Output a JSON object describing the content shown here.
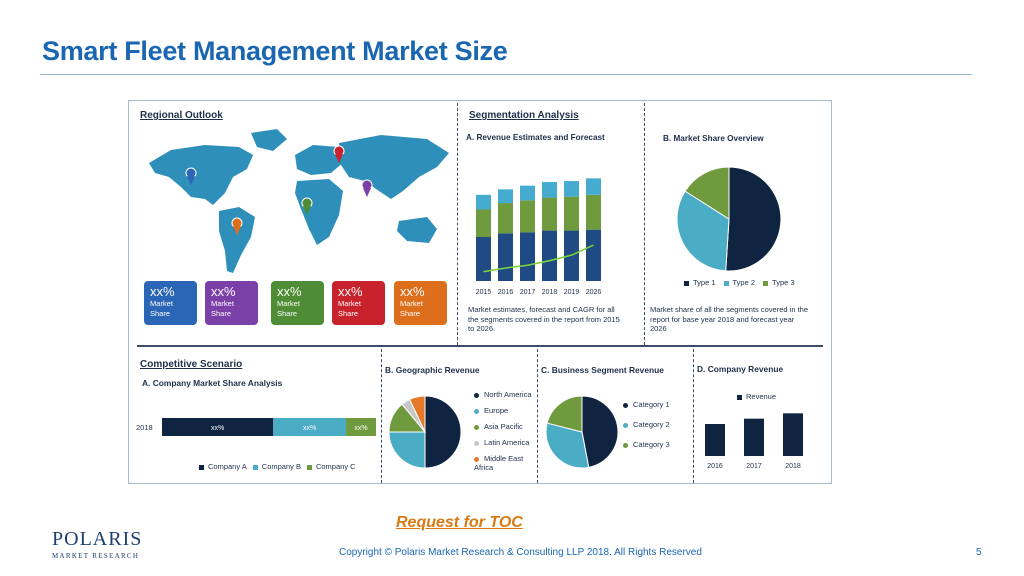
{
  "page": {
    "title": "Smart Fleet Management Market Size",
    "toc_link": "Request for TOC",
    "copyright": "Copyright © Polaris Market Research & Consulting LLP 2018. All Rights Reserved",
    "page_number": "5",
    "logo_main": "POLARIS",
    "logo_sub": "MARKET RESEARCH"
  },
  "infographic": {
    "regional": {
      "heading": "Regional Outlook",
      "tiles": [
        {
          "pct": "xx%",
          "line1": "Market",
          "line2": "Share",
          "color": "#2b66b6"
        },
        {
          "pct": "xx%",
          "line1": "Market",
          "line2": "Share",
          "color": "#7b3fa8"
        },
        {
          "pct": "xx%",
          "line1": "Market",
          "line2": "Share",
          "color": "#4e8c35"
        },
        {
          "pct": "xx%",
          "line1": "Market",
          "line2": "Share",
          "color": "#c8232c"
        },
        {
          "pct": "xx%",
          "line1": "Market",
          "line2": "Share",
          "color": "#dd6e1c"
        }
      ]
    },
    "segmentation": {
      "heading": "Segmentation Analysis",
      "a_title": "A. Revenue Estimates and Forecast",
      "a_note": [
        "Market estimates, forecast and CAGR for all",
        "the segments covered in the report from 2015",
        "to 2026."
      ],
      "b_title": "B. Market Share Overview",
      "b_note": [
        "Market share of all the segments covered in the",
        "report for base year 2018 and forecast year",
        "2026"
      ]
    },
    "competitive": {
      "heading": "Competitive Scenario",
      "a_title": "A. Company Market Share Analysis",
      "b_title": "B. Geographic Revenue",
      "c_title": "C. Business Segment Revenue",
      "d_title": "D. Company Revenue"
    }
  },
  "chart_data": [
    {
      "type": "bar",
      "title": "A. Revenue Estimates and Forecast",
      "stacked": true,
      "categories": [
        "2015",
        "2016",
        "2017",
        "2018",
        "2019",
        "2026"
      ],
      "series": [
        {
          "values": [
            48,
            52,
            53,
            55,
            55,
            56
          ],
          "color": "#1f4a84"
        },
        {
          "values": [
            30,
            33,
            35,
            36,
            37,
            38
          ],
          "color": "#6f9a3d"
        },
        {
          "values": [
            16,
            15,
            16,
            17,
            17,
            18
          ],
          "color": "#45acd0"
        }
      ],
      "trend_line": [
        8,
        12,
        15,
        20,
        26,
        37
      ],
      "ylim": [
        0,
        120
      ]
    },
    {
      "type": "pie",
      "title": "B. Market Share Overview",
      "labels": [
        "Type 1",
        "Type 2",
        "Type 3"
      ],
      "values": [
        51,
        33,
        16
      ],
      "colors": [
        "#0f2440",
        "#4bacc6",
        "#6f9a3d"
      ],
      "legend": "bottom"
    },
    {
      "type": "bar",
      "title": "A. Company Market Share Analysis",
      "orientation": "horizontal",
      "stacked": true,
      "categories": [
        "2018"
      ],
      "series": [
        {
          "name": "Company A",
          "values": [
            52
          ],
          "label": "xx%",
          "color": "#0f2440"
        },
        {
          "name": "Company B",
          "values": [
            34
          ],
          "label": "xx%",
          "color": "#4bacc6"
        },
        {
          "name": "Company C",
          "values": [
            14
          ],
          "label": "xx%",
          "color": "#6f9a3d"
        }
      ],
      "legend": "bottom"
    },
    {
      "type": "pie",
      "title": "B. Geographic Revenue",
      "labels": [
        "North America",
        "Europe",
        "Asia Pacific",
        "Latin America",
        "Middle East Africa"
      ],
      "values": [
        50,
        25,
        14,
        4,
        7
      ],
      "colors": [
        "#0f2440",
        "#4bacc6",
        "#6f9a3d",
        "#c8c8c8",
        "#e6782a"
      ],
      "legend": "right"
    },
    {
      "type": "pie",
      "title": "C. Business Segment Revenue",
      "labels": [
        "Category 1",
        "Category 2",
        "Category 3"
      ],
      "values": [
        47,
        32,
        21
      ],
      "colors": [
        "#0f2440",
        "#4bacc6",
        "#6f9a3d"
      ],
      "legend": "right"
    },
    {
      "type": "bar",
      "title": "D. Company Revenue",
      "categories": [
        "2016",
        "2017",
        "2018"
      ],
      "series": [
        {
          "name": "Revenue",
          "values": [
            30,
            35,
            40
          ],
          "color": "#0f2440"
        }
      ],
      "ylim": [
        0,
        45
      ],
      "legend": "top"
    }
  ]
}
